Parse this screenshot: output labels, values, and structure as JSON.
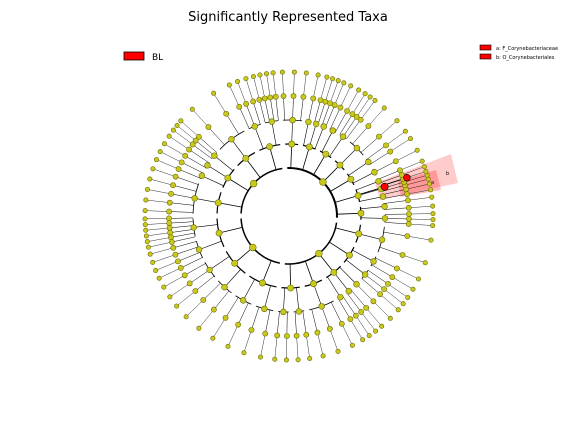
{
  "chart_data": {
    "type": "cladogram",
    "title": "Significantly Represented Taxa",
    "groups": [
      {
        "name": "BL",
        "color": "#ff0000"
      }
    ],
    "highlighted_clades": [
      {
        "key": "a",
        "label": "a: F_Corynebacteriaceae",
        "group": "BL"
      },
      {
        "key": "b",
        "label": "b: O_Corynebacteriales",
        "group": "BL"
      }
    ],
    "node_color": "#c8c81e",
    "highlight_color": "#ff0000"
  }
}
